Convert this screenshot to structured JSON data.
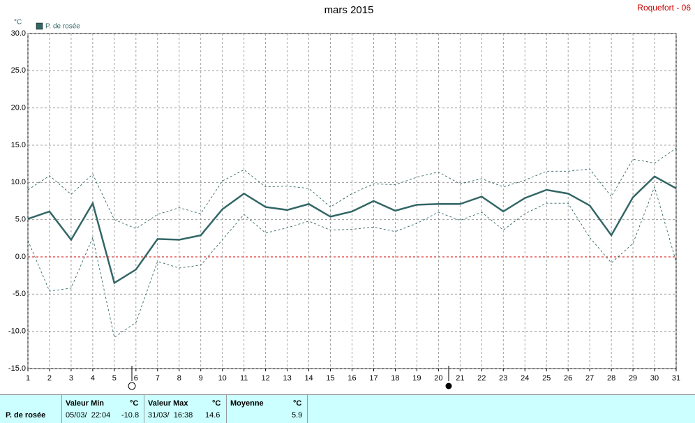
{
  "chart_data": {
    "type": "line",
    "title": "mars 2015",
    "station": "Roquefort - 06",
    "y_unit": "°C",
    "x": [
      1,
      2,
      3,
      4,
      5,
      6,
      7,
      8,
      9,
      10,
      11,
      12,
      13,
      14,
      15,
      16,
      17,
      18,
      19,
      20,
      21,
      22,
      23,
      24,
      25,
      26,
      27,
      28,
      29,
      30,
      31
    ],
    "xlim": [
      1,
      31
    ],
    "xticks": [
      1,
      2,
      3,
      4,
      5,
      6,
      7,
      8,
      9,
      10,
      11,
      12,
      13,
      14,
      15,
      16,
      17,
      18,
      19,
      20,
      21,
      22,
      23,
      24,
      25,
      26,
      27,
      28,
      29,
      30,
      31
    ],
    "ylim": [
      -15,
      30
    ],
    "yticks": [
      {
        "value": -15,
        "label": "-15.0"
      },
      {
        "value": -10,
        "label": "-10.0"
      },
      {
        "value": -5,
        "label": "-5.0"
      },
      {
        "value": 0,
        "label": "0.0"
      },
      {
        "value": 5,
        "label": "5.0"
      },
      {
        "value": 10,
        "label": "10.0"
      },
      {
        "value": 15,
        "label": "15.0"
      },
      {
        "value": 20,
        "label": "20.0"
      },
      {
        "value": 25,
        "label": "25.0"
      },
      {
        "value": 30,
        "label": "30.0"
      }
    ],
    "grid": true,
    "zero_line_color": "#dd0000",
    "series": [
      {
        "name": "P. de rosée",
        "color": "#336666",
        "values": [
          5.1,
          6.1,
          2.3,
          7.2,
          -3.5,
          -1.7,
          2.4,
          2.3,
          2.9,
          6.4,
          8.5,
          6.7,
          6.3,
          7.1,
          5.4,
          6.1,
          7.5,
          6.2,
          7.0,
          7.1,
          7.1,
          8.1,
          6.1,
          7.9,
          9.0,
          8.5,
          6.9,
          2.9,
          8.0,
          10.8,
          9.2
        ]
      },
      {
        "color": "#336666",
        "dashed": true,
        "values": [
          9.0,
          10.9,
          8.4,
          11.1,
          5.0,
          3.8,
          5.7,
          6.6,
          5.8,
          10.2,
          11.7,
          9.4,
          9.5,
          9.2,
          6.7,
          8.5,
          9.8,
          9.7,
          10.7,
          11.4,
          9.8,
          10.5,
          9.4,
          10.3,
          11.5,
          11.5,
          11.8,
          8.1,
          13.1,
          12.6,
          14.6
        ]
      },
      {
        "color": "#336666",
        "dashed": true,
        "values": [
          2.2,
          -4.6,
          -4.2,
          2.6,
          -10.8,
          -8.8,
          -0.6,
          -1.5,
          -1.1,
          2.3,
          5.7,
          3.2,
          3.9,
          4.8,
          3.6,
          3.7,
          4.0,
          3.4,
          4.5,
          6.0,
          4.9,
          6.0,
          3.6,
          5.8,
          7.2,
          7.2,
          2.6,
          -0.8,
          1.8,
          9.4,
          -0.7
        ]
      }
    ]
  },
  "table": {
    "row_label": "P. de rosée",
    "min": {
      "header": "Valeur Min",
      "unit": "°C",
      "date": "05/03/  22:04",
      "value": "-10.8"
    },
    "max": {
      "header": "Valeur Max",
      "unit": "°C",
      "date": "31/03/  16:38",
      "value": "14.6"
    },
    "mean": {
      "header": "Moyenne",
      "unit": "°C",
      "value": "5.9"
    }
  }
}
